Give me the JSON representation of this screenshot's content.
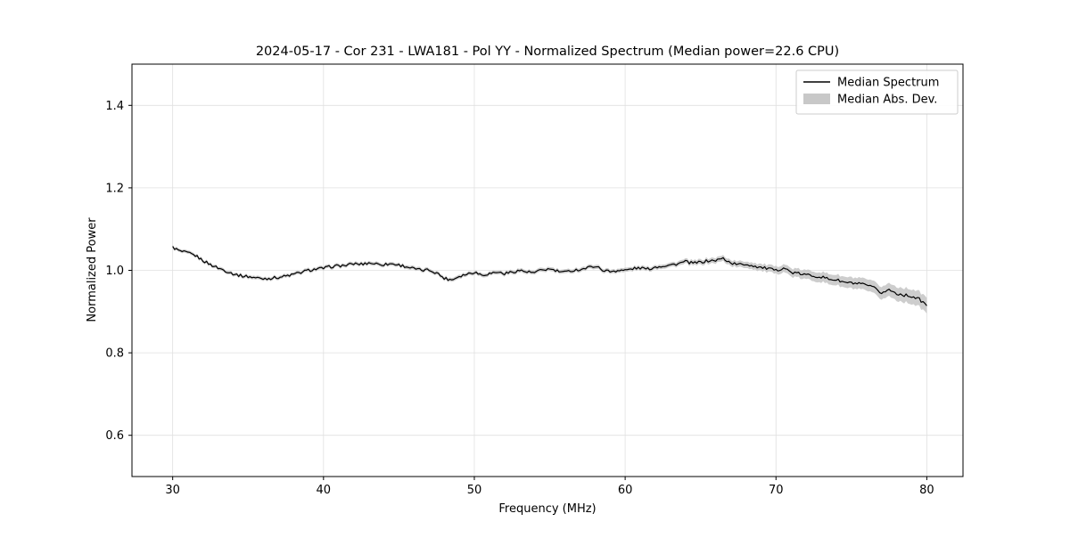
{
  "figure": {
    "title": "2024-05-17 - Cor 231 - LWA181 - Pol YY - Normalized Spectrum (Median power=22.6 CPU)",
    "xlabel": "Frequency (MHz)",
    "ylabel": "Normalized Power"
  },
  "legend": {
    "items": [
      {
        "label": "Median Spectrum",
        "type": "line",
        "color": "#000000"
      },
      {
        "label": "Median Abs. Dev.",
        "type": "band",
        "color": "#c8c8c8"
      }
    ]
  },
  "chart_data": {
    "type": "line",
    "title": "2024-05-17 - Cor 231 - LWA181 - Pol YY - Normalized Spectrum (Median power=22.6 CPU)",
    "xlabel": "Frequency (MHz)",
    "ylabel": "Normalized Power",
    "xlim": [
      27.3,
      82.4
    ],
    "ylim": [
      0.5,
      1.5
    ],
    "xticks": [
      30,
      40,
      50,
      60,
      70,
      80
    ],
    "xtick_labels": [
      "30",
      "40",
      "50",
      "60",
      "70",
      "80"
    ],
    "yticks": [
      0.6,
      0.8,
      1.0,
      1.2,
      1.4
    ],
    "ytick_labels": [
      "0.6",
      "0.8",
      "1.0",
      "1.2",
      "1.4"
    ],
    "grid": true,
    "legend_position": "upper right",
    "noise_amplitude": 0.0035,
    "series": [
      {
        "name": "Median Spectrum",
        "type": "line",
        "color": "#000000",
        "x_start": 30.0,
        "x_step": 0.5,
        "y": [
          1.056,
          1.046,
          1.042,
          1.036,
          1.024,
          1.014,
          1.006,
          0.999,
          0.992,
          0.987,
          0.985,
          0.982,
          0.98,
          0.981,
          0.983,
          0.986,
          0.99,
          0.995,
          1.0,
          1.003,
          1.005,
          1.009,
          1.011,
          1.012,
          1.016,
          1.015,
          1.018,
          1.016,
          1.014,
          1.016,
          1.013,
          1.009,
          1.004,
          1.0,
          1.001,
          0.994,
          0.981,
          0.977,
          0.986,
          0.991,
          0.996,
          0.989,
          0.992,
          0.996,
          0.992,
          0.996,
          1.0,
          0.996,
          0.994,
          1.001,
          1.003,
          0.998,
          0.995,
          1.0,
          1.002,
          1.006,
          1.011,
          1.001,
          0.997,
          1.0,
          1.0,
          1.004,
          1.006,
          1.003,
          1.008,
          1.011,
          1.013,
          1.016,
          1.021,
          1.017,
          1.02,
          1.023,
          1.024,
          1.029,
          1.018,
          1.014,
          1.015,
          1.011,
          1.007,
          1.004,
          0.999,
          1.007,
          0.995,
          0.992,
          0.989,
          0.987,
          0.984,
          0.979,
          0.977,
          0.971,
          0.969,
          0.967,
          0.964,
          0.957,
          0.945,
          0.953,
          0.944,
          0.94,
          0.937,
          0.93,
          0.914
        ]
      },
      {
        "name": "Median Abs. Dev.",
        "type": "band",
        "color": "#c8c8c8",
        "mad_breakpoints": [
          [
            30,
            0.004
          ],
          [
            62,
            0.005
          ],
          [
            67,
            0.007
          ],
          [
            70,
            0.009
          ],
          [
            73,
            0.012
          ],
          [
            76,
            0.014
          ],
          [
            80,
            0.019
          ]
        ]
      }
    ]
  }
}
